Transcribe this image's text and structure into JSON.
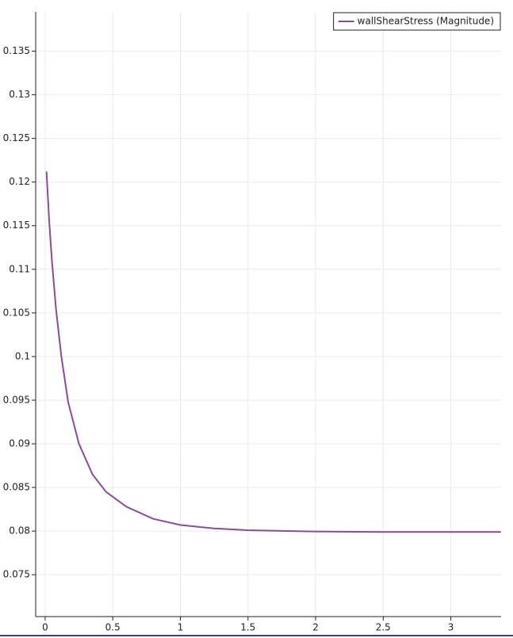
{
  "chart_data": {
    "type": "line",
    "x": [
      0.01,
      0.03,
      0.05,
      0.08,
      0.12,
      0.17,
      0.25,
      0.35,
      0.45,
      0.6,
      0.8,
      1.0,
      1.25,
      1.5,
      2.0,
      2.5,
      3.0,
      3.37
    ],
    "series": [
      {
        "name": "wallShearStress (Magnitude)",
        "color": "#8b4a9c",
        "values": [
          0.1212,
          0.1155,
          0.111,
          0.1055,
          0.1,
          0.0948,
          0.09,
          0.0865,
          0.0845,
          0.0828,
          0.0814,
          0.0807,
          0.0803,
          0.0801,
          0.07995,
          0.0799,
          0.0799,
          0.0799
        ]
      }
    ],
    "xlim": [
      -0.07,
      3.372
    ],
    "xticks": [
      0,
      0.5,
      1,
      1.5,
      2,
      2.5,
      3
    ],
    "ylim": [
      0.0702,
      0.1395
    ],
    "yticks": [
      0.075,
      0.08,
      0.085,
      0.09,
      0.095,
      0.1,
      0.105,
      0.11,
      0.115,
      0.12,
      0.125,
      0.13,
      0.135
    ],
    "grid": true,
    "legend": "top-right"
  }
}
